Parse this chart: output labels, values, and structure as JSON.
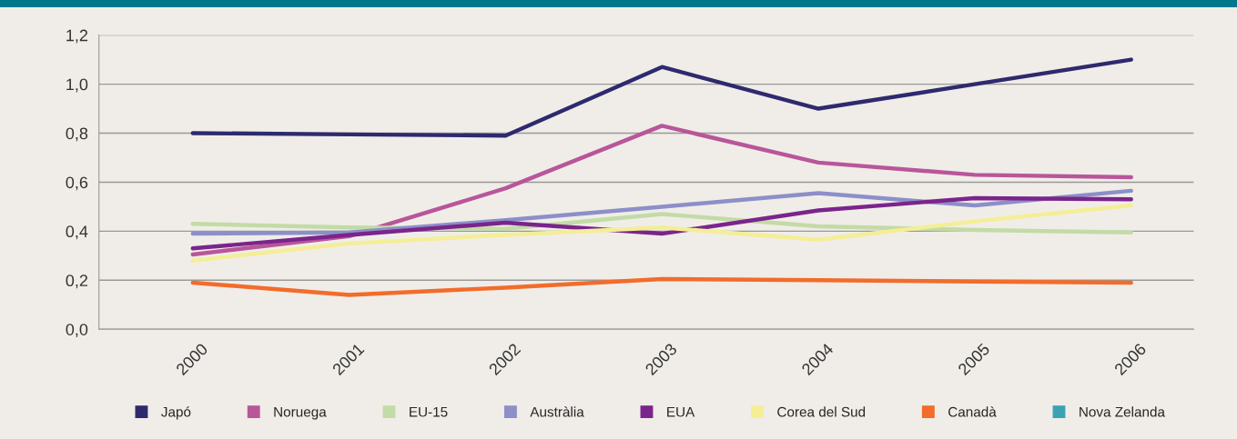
{
  "chart_data": {
    "type": "line",
    "categories": [
      "2000",
      "2001",
      "2002",
      "2003",
      "2004",
      "2005",
      "2006"
    ],
    "series": [
      {
        "name": "Japó",
        "color": "#2e2a6e",
        "values": [
          0.8,
          0.795,
          0.79,
          1.07,
          0.9,
          1.0,
          1.1
        ]
      },
      {
        "name": "Noruega",
        "color": "#b9569a",
        "values": [
          0.305,
          0.38,
          0.575,
          0.83,
          0.68,
          0.63,
          0.62
        ]
      },
      {
        "name": "EU-15",
        "color": "#c3dba6",
        "values": [
          0.43,
          0.415,
          0.41,
          0.47,
          0.42,
          0.405,
          0.395
        ]
      },
      {
        "name": "Austràlia",
        "color": "#8c8fc8",
        "values": [
          0.39,
          0.395,
          0.445,
          0.5,
          0.555,
          0.505,
          0.565
        ]
      },
      {
        "name": "EUA",
        "color": "#7b248c",
        "values": [
          0.33,
          0.385,
          0.435,
          0.39,
          0.485,
          0.535,
          0.53
        ]
      },
      {
        "name": "Corea del Sud",
        "color": "#f4ee96",
        "values": [
          0.28,
          0.35,
          0.385,
          0.415,
          0.365,
          0.44,
          0.505
        ]
      },
      {
        "name": "Canadà",
        "color": "#f26c2b",
        "values": [
          0.19,
          0.14,
          0.17,
          0.205,
          0.2,
          0.195,
          0.19
        ]
      },
      {
        "name": "Nova Zelanda",
        "color": "#3aa3b3",
        "values": [
          null,
          null,
          null,
          null,
          null,
          null,
          null
        ]
      }
    ],
    "ylim": [
      0,
      1.2
    ],
    "yticks": [
      {
        "value": 0,
        "label": "0,0"
      },
      {
        "value": 0.2,
        "label": "0,2"
      },
      {
        "value": 0.4,
        "label": "0,4"
      },
      {
        "value": 0.6,
        "label": "0,6"
      },
      {
        "value": 0.8,
        "label": "0,8"
      },
      {
        "value": 1.0,
        "label": "1,0"
      },
      {
        "value": 1.2,
        "label": "1,2"
      }
    ],
    "grid": "y",
    "legend": "bottom",
    "marker": "none",
    "line_style": "solid"
  }
}
